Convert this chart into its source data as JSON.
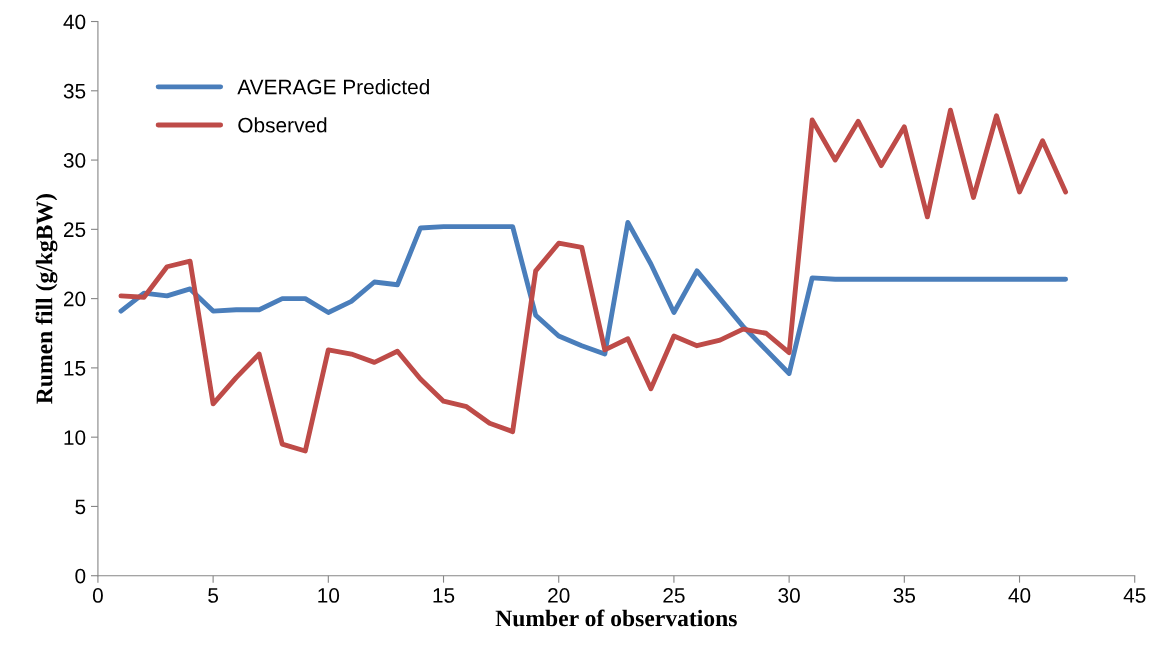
{
  "chart_data": {
    "type": "line",
    "xlabel": "Number of observations",
    "ylabel": "Rumen fill (g/kgBW)",
    "x": [
      1,
      2,
      3,
      4,
      5,
      6,
      7,
      8,
      9,
      10,
      11,
      12,
      13,
      14,
      15,
      16,
      17,
      18,
      19,
      20,
      21,
      22,
      23,
      24,
      25,
      26,
      27,
      28,
      29,
      30,
      31,
      32,
      33,
      34,
      35,
      36,
      37,
      38,
      39,
      40,
      41,
      42
    ],
    "series": [
      {
        "name": "AVERAGE Predicted",
        "color": "#4a7ebb",
        "values": [
          19.1,
          20.4,
          20.2,
          20.7,
          19.1,
          19.2,
          19.2,
          20.0,
          20.0,
          19.0,
          19.8,
          21.2,
          21.0,
          25.1,
          25.2,
          25.2,
          25.2,
          25.2,
          18.8,
          17.3,
          16.6,
          16.0,
          25.5,
          22.5,
          19.0,
          22.0,
          20.0,
          18.0,
          16.3,
          14.6,
          21.5,
          21.4,
          21.4,
          21.4,
          21.4,
          21.4,
          21.4,
          21.4,
          21.4,
          21.4,
          21.4,
          21.4
        ]
      },
      {
        "name": "Observed",
        "color": "#be4b48",
        "values": [
          20.2,
          20.1,
          22.3,
          22.7,
          12.4,
          14.3,
          16.0,
          9.5,
          9.0,
          16.3,
          16.0,
          15.4,
          16.2,
          14.2,
          12.6,
          12.2,
          11.0,
          10.4,
          22.0,
          24.0,
          23.7,
          16.3,
          17.1,
          13.5,
          17.3,
          16.6,
          17.0,
          17.8,
          17.5,
          16.1,
          32.9,
          30.0,
          32.8,
          29.6,
          32.4,
          25.9,
          33.6,
          27.3,
          33.2,
          27.7,
          31.4,
          27.7
        ]
      }
    ],
    "xlim": [
      0,
      45
    ],
    "xticks": [
      0,
      5,
      10,
      15,
      20,
      25,
      30,
      35,
      40,
      45
    ],
    "ylim": [
      0,
      40
    ],
    "yticks": [
      0,
      5,
      10,
      15,
      20,
      25,
      30,
      35,
      40
    ],
    "legend": "top left",
    "grid": false,
    "marker": "none",
    "line_style": "solid"
  }
}
